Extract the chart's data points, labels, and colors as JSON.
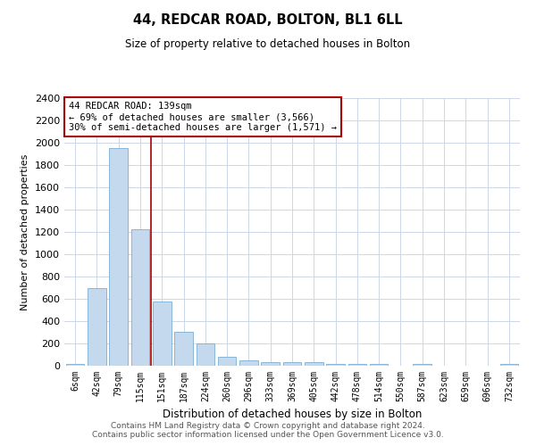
{
  "title1": "44, REDCAR ROAD, BOLTON, BL1 6LL",
  "title2": "Size of property relative to detached houses in Bolton",
  "xlabel": "Distribution of detached houses by size in Bolton",
  "ylabel": "Number of detached properties",
  "categories": [
    "6sqm",
    "42sqm",
    "79sqm",
    "115sqm",
    "151sqm",
    "187sqm",
    "224sqm",
    "260sqm",
    "296sqm",
    "333sqm",
    "369sqm",
    "405sqm",
    "442sqm",
    "478sqm",
    "514sqm",
    "550sqm",
    "587sqm",
    "623sqm",
    "659sqm",
    "696sqm",
    "732sqm"
  ],
  "bar_heights": [
    15,
    700,
    1950,
    1225,
    575,
    305,
    200,
    80,
    45,
    35,
    35,
    35,
    20,
    20,
    20,
    0,
    20,
    0,
    0,
    0,
    20
  ],
  "bar_color": "#c5d9ee",
  "bar_edge_color": "#7bafd4",
  "background_color": "#ffffff",
  "grid_color": "#ccd6e8",
  "vline_x": 3.5,
  "vline_color": "#aa0000",
  "annotation_text": "44 REDCAR ROAD: 139sqm\n← 69% of detached houses are smaller (3,566)\n30% of semi-detached houses are larger (1,571) →",
  "annotation_box_color": "#ffffff",
  "annotation_box_edge": "#aa0000",
  "ylim": [
    0,
    2400
  ],
  "yticks": [
    0,
    200,
    400,
    600,
    800,
    1000,
    1200,
    1400,
    1600,
    1800,
    2000,
    2200,
    2400
  ],
  "footer_text": "Contains HM Land Registry data © Crown copyright and database right 2024.\nContains public sector information licensed under the Open Government Licence v3.0.",
  "figsize": [
    6.0,
    5.0
  ],
  "dpi": 100
}
